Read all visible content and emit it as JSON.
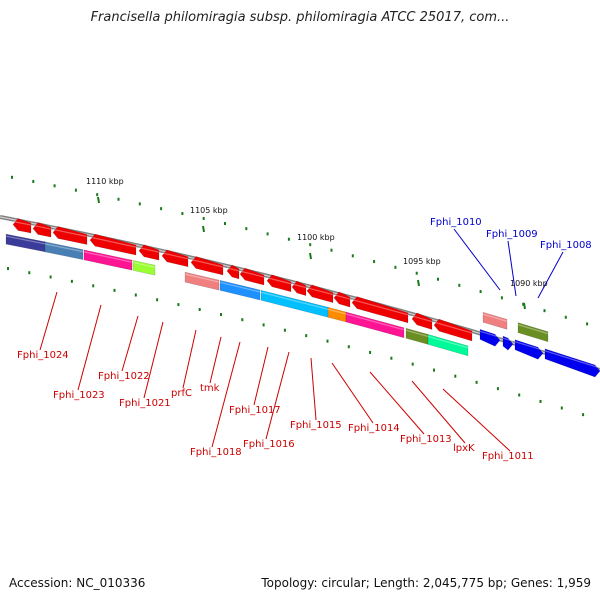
{
  "title": "Francisella philomiragia subsp. philomiragia ATCC 25017, com...",
  "footer": {
    "accession": "Accession: NC_010336",
    "stats": "Topology: circular; Length: 2,045,775 bp; Genes: 1,959"
  },
  "colors": {
    "backbone": "#808080",
    "tick": "#1a7a1a",
    "label_red": "#cc0000",
    "label_blue": "#0000cc",
    "arrow_red": "#ee0000",
    "arrow_blue": "#0000ee"
  },
  "kbp_labels": [
    "1110 kbp",
    "1105 kbp",
    "1100 kbp",
    "1095 kbp",
    "1090 kbp"
  ],
  "gene_labels": [
    "Fphi_1024",
    "Fphi_1023",
    "Fphi_1022",
    "Fphi_1021",
    "prfC",
    "tmk",
    "Fphi_1018",
    "Fphi_1017",
    "Fphi_1016",
    "Fphi_1015",
    "Fphi_1014",
    "Fphi_1013",
    "lpxK",
    "Fphi_1011",
    "Fphi_1010",
    "Fphi_1009",
    "Fphi_1008"
  ]
}
